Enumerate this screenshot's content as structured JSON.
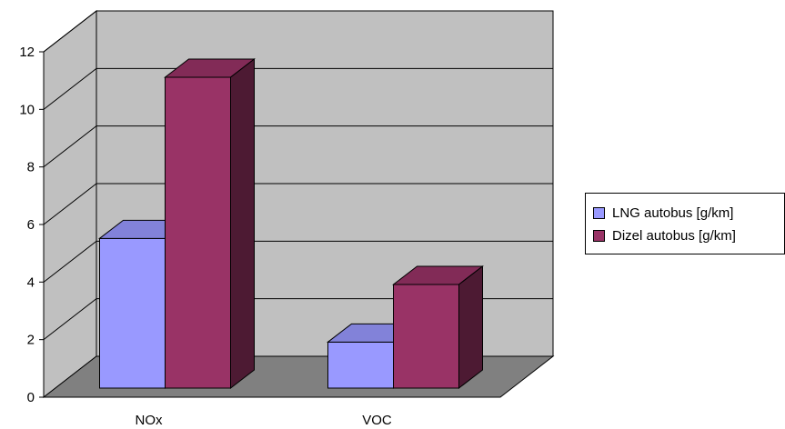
{
  "chart_data": {
    "type": "bar",
    "categories": [
      "NOx",
      "VOC"
    ],
    "series": [
      {
        "name": "LNG autobus [g/km]",
        "values": [
          5.2,
          1.6
        ],
        "color": "#9999ff"
      },
      {
        "name": "Dizel autobus [g/km]",
        "values": [
          10.8,
          3.6
        ],
        "color": "#993366"
      }
    ],
    "yticks": [
      0,
      2,
      4,
      6,
      8,
      10,
      12
    ],
    "ylim": [
      0,
      12
    ],
    "grid": true,
    "legend": "right",
    "three_d": true,
    "colors": {
      "wall": "#c0c0c0",
      "floor": "#808080",
      "grid": "#000000"
    }
  }
}
